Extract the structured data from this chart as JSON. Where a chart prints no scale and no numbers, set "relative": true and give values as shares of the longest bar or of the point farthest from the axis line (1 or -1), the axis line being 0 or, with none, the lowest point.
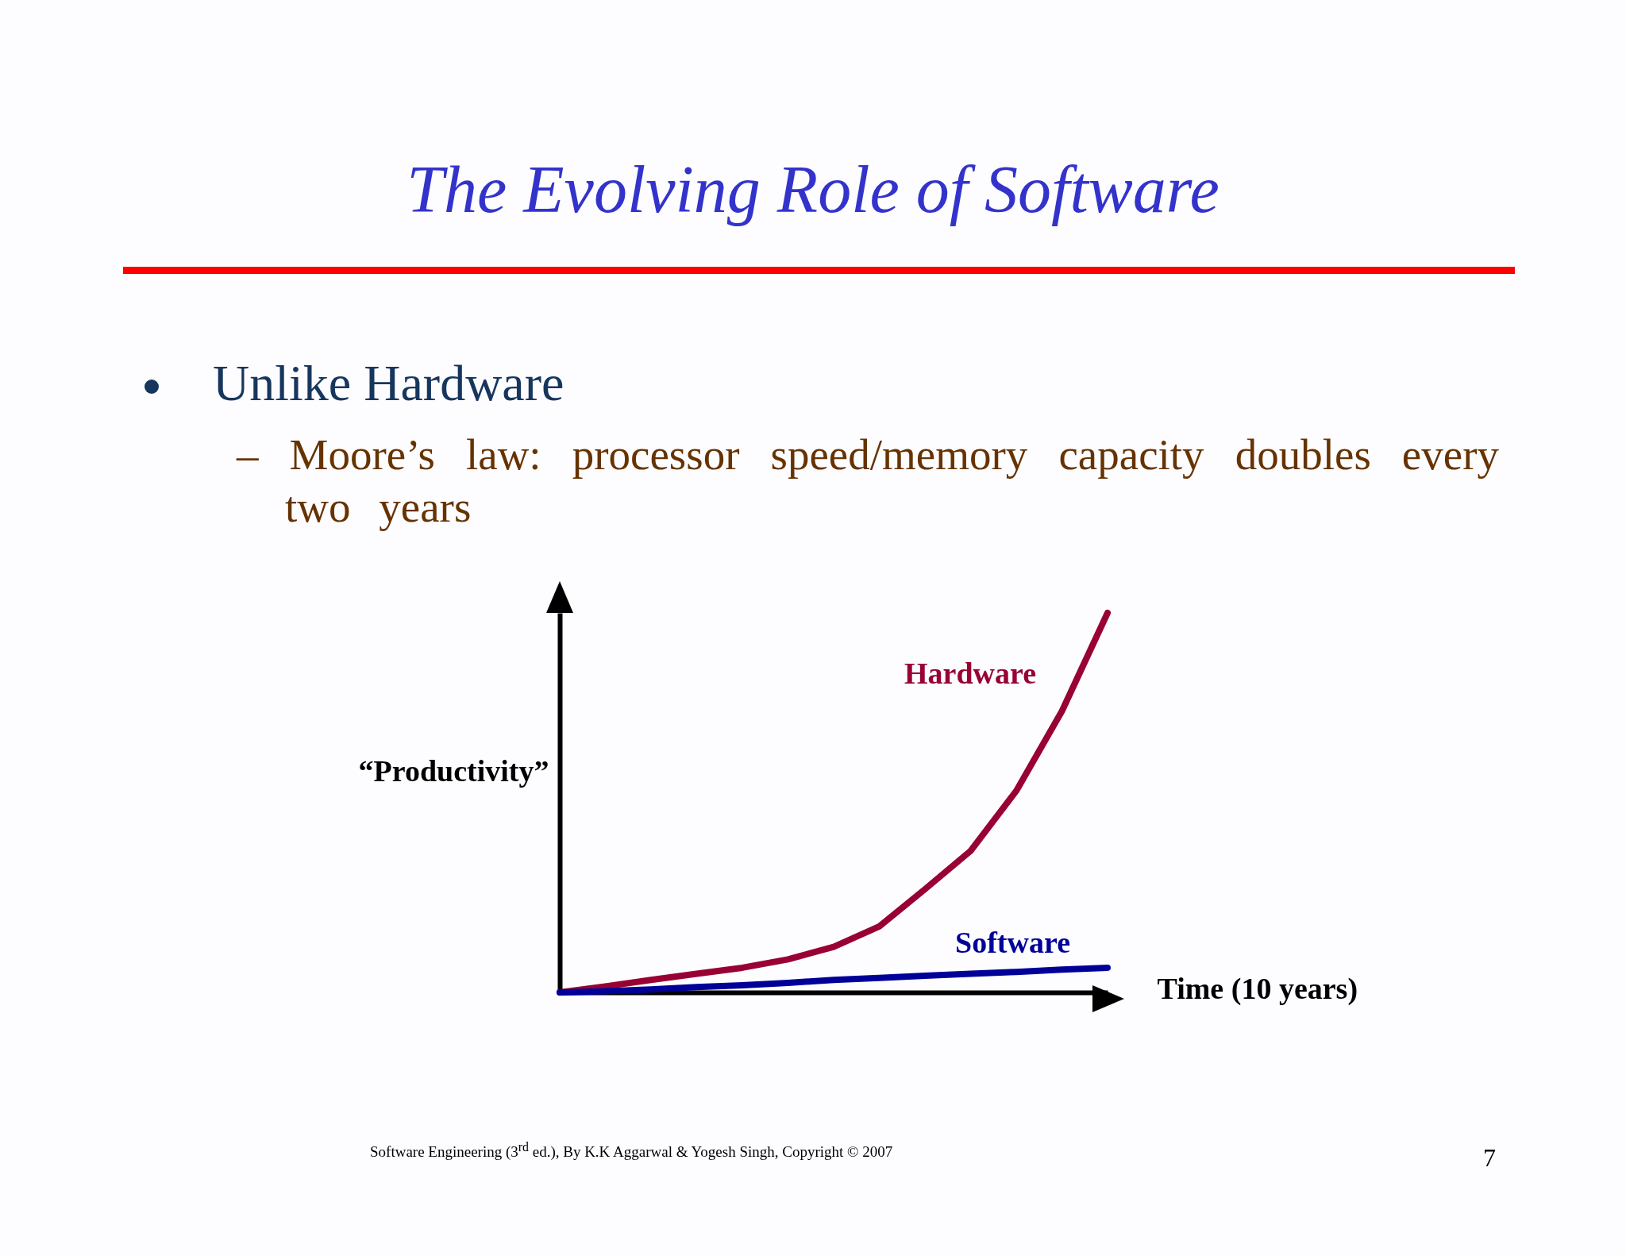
{
  "chart_data": {
    "type": "line",
    "title": "The Evolving Role of Software",
    "xlabel": "Time (10 years)",
    "ylabel": "“Productivity”",
    "relative": true,
    "categories": [
      null,
      null,
      null,
      null,
      null,
      null,
      null,
      null,
      null,
      null,
      null,
      null,
      null
    ],
    "series": [
      {
        "name": "Hardware",
        "color": "#990033",
        "values": [
          0,
          0.016,
          0.033,
          0.049,
          0.065,
          0.087,
          0.12,
          0.174,
          0.272,
          0.373,
          0.531,
          0.741,
          1
        ]
      },
      {
        "name": "Software",
        "color": "#000099",
        "values": [
          0,
          0.003,
          0.008,
          0.014,
          0.019,
          0.025,
          0.033,
          0.038,
          0.044,
          0.049,
          0.054,
          0.06,
          0.065
        ]
      }
    ],
    "annotations": [
      "Unlike Hardware",
      "– Moore’s law: processor speed/memory capacity doubles every two years",
      "Software Engineering (3$^{rd}$ ed.), By K.K Aggarwal & Yogesh Singh, Copyright © 2007",
      "7"
    ]
  }
}
